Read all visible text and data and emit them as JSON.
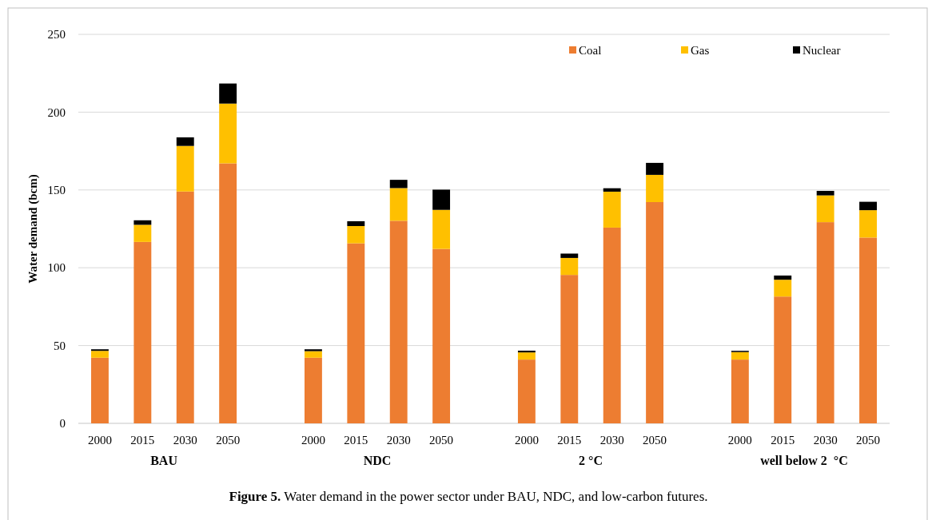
{
  "chart_data": {
    "type": "bar",
    "stacked": true,
    "ylabel": "Water demand (bcm)",
    "categories": [
      "2000",
      "2015",
      "2030",
      "2050",
      null,
      "2000",
      "2015",
      "2030",
      "2050",
      null,
      "2000",
      "2015",
      "2030",
      "2050",
      null,
      "2000",
      "2015",
      "2030",
      "2050"
    ],
    "series": [
      {
        "name": "Coal",
        "color": "#ed7d31",
        "values": [
          42.2,
          116.6,
          149.0,
          167.1,
          null,
          42.2,
          115.7,
          130.2,
          112.1,
          null,
          41.0,
          95.4,
          125.8,
          142.2,
          null,
          41.0,
          81.5,
          129.3,
          119.4
        ]
      },
      {
        "name": "Gas",
        "color": "#ffc000",
        "values": [
          4.4,
          11.0,
          29.3,
          38.4,
          null,
          4.2,
          11.1,
          21.0,
          25.1,
          null,
          4.6,
          10.9,
          23.1,
          17.5,
          null,
          4.8,
          10.8,
          17.2,
          17.6
        ]
      },
      {
        "name": "Nuclear",
        "color": "#000000",
        "values": [
          1.0,
          2.9,
          5.5,
          12.9,
          null,
          1.2,
          3.1,
          5.3,
          13.0,
          null,
          1.1,
          2.8,
          2.2,
          7.7,
          null,
          0.8,
          2.7,
          2.9,
          5.4
        ]
      }
    ],
    "ylim": [
      0,
      250
    ],
    "yticks": [
      0,
      50,
      100,
      150,
      200,
      250
    ],
    "grid": "y",
    "legend": "top right",
    "annotations": [
      "BAU",
      "NDC",
      "2 °C",
      "well below 2  °C",
      "Figure 5. Water demand in the power sector under BAU, NDC, and low-carbon futures."
    ]
  }
}
